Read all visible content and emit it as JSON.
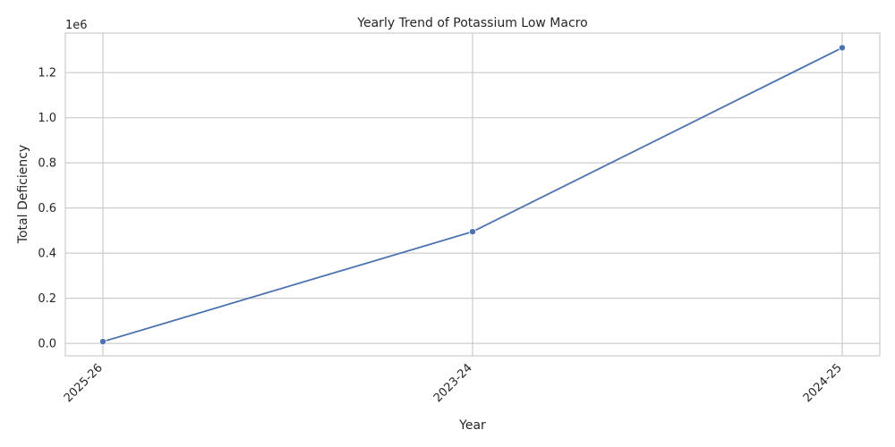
{
  "chart_data": {
    "type": "line",
    "title": "Yearly Trend of Potassium Low Macro",
    "xlabel": "Year",
    "ylabel": "Total Deficiency",
    "y_offset_label": "1e6",
    "categories": [
      "2025-26",
      "2023-24",
      "2024-25"
    ],
    "series": [
      {
        "values": [
          8000,
          495000,
          1310000
        ]
      }
    ],
    "yticks": [
      0,
      200000,
      400000,
      600000,
      800000,
      1000000,
      1200000
    ],
    "ytick_labels": [
      "0.0",
      "0.2",
      "0.4",
      "0.6",
      "0.8",
      "1.0",
      "1.2"
    ],
    "ylim": [
      -55000,
      1375000
    ],
    "grid": true,
    "line_color": "#4c72b0"
  }
}
